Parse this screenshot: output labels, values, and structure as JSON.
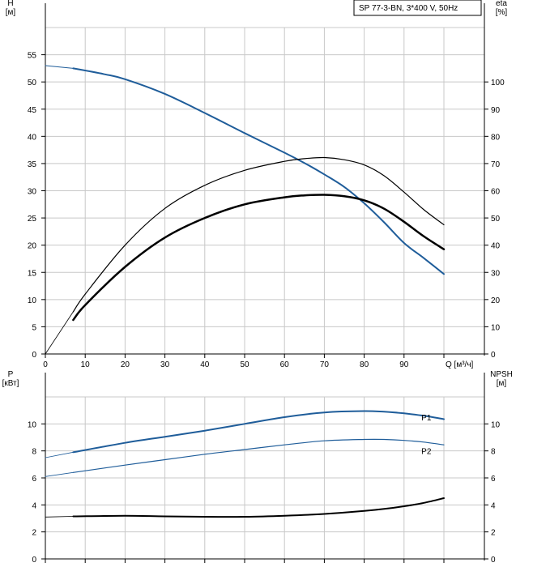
{
  "title": "SP 77-3-BN, 3*400 V, 50Hz",
  "colors": {
    "blue": "#1f5d9a",
    "black": "#000000",
    "grid": "#c8c8c8",
    "axis": "#000000"
  },
  "chart_data": [
    {
      "type": "line",
      "name": "head-efficiency",
      "xlabel": "Q [м³/ч]",
      "ylabel_left": "H\n[м]",
      "ylabel_right": "eta\n[%]",
      "xlim": [
        0,
        100
      ],
      "ylim_left": [
        0,
        60
      ],
      "ylim_right": [
        0,
        120
      ],
      "xticks": [
        "0",
        "10",
        "20",
        "30",
        "40",
        "50",
        "60",
        "70",
        "80",
        "90"
      ],
      "yticks_left": [
        "0",
        "5",
        "10",
        "15",
        "20",
        "25",
        "30",
        "35",
        "40",
        "45",
        "50",
        "55"
      ],
      "yticks_right": [
        "0",
        "10",
        "20",
        "30",
        "40",
        "50",
        "60",
        "70",
        "80",
        "90",
        "100"
      ],
      "grid": true,
      "series": [
        {
          "name": "H",
          "axis": "left",
          "color": "blue",
          "width": 2,
          "x": [
            7,
            15,
            20,
            30,
            40,
            50,
            60,
            65,
            70,
            75,
            80,
            85,
            90,
            95,
            100
          ],
          "y": [
            52.5,
            51.4,
            50.5,
            47.8,
            44.3,
            40.6,
            37.0,
            35.1,
            33.0,
            30.7,
            27.7,
            24.2,
            20.4,
            17.6,
            14.7
          ]
        },
        {
          "name": "H-extension",
          "axis": "left",
          "color": "blue",
          "width": 1,
          "x": [
            0,
            7
          ],
          "y": [
            53.0,
            52.5
          ]
        },
        {
          "name": "eta-thin",
          "axis": "right",
          "color": "black",
          "width": 1.2,
          "x": [
            7,
            10,
            20,
            30,
            40,
            50,
            60,
            65,
            70,
            75,
            80,
            85,
            90,
            95,
            100
          ],
          "y": [
            15.5,
            22,
            40,
            53.5,
            62,
            67.5,
            70.8,
            71.8,
            72.2,
            71.4,
            69.5,
            65.5,
            59.5,
            53,
            47.5
          ]
        },
        {
          "name": "eta-thick",
          "axis": "right",
          "color": "black",
          "width": 2.5,
          "x": [
            7,
            10,
            20,
            30,
            40,
            50,
            60,
            65,
            70,
            75,
            80,
            85,
            90,
            95,
            100
          ],
          "y": [
            12.5,
            18,
            32,
            42.8,
            50,
            55,
            57.6,
            58.3,
            58.5,
            58.0,
            56.5,
            53.4,
            48.6,
            43.2,
            38.5
          ]
        },
        {
          "name": "eta-extension",
          "axis": "right",
          "color": "black",
          "width": 0.8,
          "x": [
            0,
            7
          ],
          "y": [
            0,
            15.5
          ]
        }
      ]
    },
    {
      "type": "line",
      "name": "power-npsh",
      "ylabel_left": "P\n[кВт]",
      "ylabel_right": "NPSH\n[м]",
      "xlim": [
        0,
        100
      ],
      "ylim_left": [
        0,
        12
      ],
      "ylim_right": [
        0,
        12
      ],
      "yticks_left": [
        "0",
        "2",
        "4",
        "6",
        "8",
        "10"
      ],
      "yticks_right": [
        "0",
        "2",
        "4",
        "6",
        "8",
        "10"
      ],
      "grid": true,
      "series": [
        {
          "name": "P1",
          "axis": "left",
          "color": "blue",
          "width": 2,
          "x": [
            7,
            20,
            30,
            40,
            50,
            60,
            70,
            80,
            85,
            90,
            95,
            100
          ],
          "y": [
            7.9,
            8.6,
            9.05,
            9.5,
            10.0,
            10.5,
            10.85,
            10.95,
            10.9,
            10.78,
            10.6,
            10.35
          ]
        },
        {
          "name": "P2",
          "axis": "left",
          "color": "blue",
          "width": 1.2,
          "x": [
            7,
            20,
            30,
            40,
            50,
            60,
            70,
            80,
            85,
            90,
            95,
            100
          ],
          "y": [
            6.4,
            6.95,
            7.35,
            7.75,
            8.1,
            8.45,
            8.75,
            8.85,
            8.85,
            8.78,
            8.65,
            8.45
          ]
        },
        {
          "name": "P1-extension",
          "axis": "left",
          "color": "blue",
          "width": 0.8,
          "x": [
            0,
            7
          ],
          "y": [
            7.5,
            7.9
          ]
        },
        {
          "name": "P2-extension",
          "axis": "left",
          "color": "blue",
          "width": 0.8,
          "x": [
            0,
            7
          ],
          "y": [
            6.1,
            6.4
          ]
        },
        {
          "name": "NPSH",
          "axis": "right",
          "color": "black",
          "width": 2,
          "x": [
            7,
            20,
            30,
            40,
            50,
            60,
            70,
            80,
            85,
            90,
            95,
            100
          ],
          "y": [
            3.15,
            3.2,
            3.15,
            3.12,
            3.12,
            3.2,
            3.33,
            3.55,
            3.7,
            3.9,
            4.15,
            4.5
          ]
        },
        {
          "name": "NPSH-extension",
          "axis": "right",
          "color": "black",
          "width": 0.8,
          "x": [
            0,
            7
          ],
          "y": [
            3.1,
            3.15
          ]
        }
      ],
      "labels": [
        {
          "text": "P1",
          "x": 98,
          "y": 10.5
        },
        {
          "text": "P2",
          "x": 98,
          "y": 8.0
        }
      ]
    }
  ]
}
